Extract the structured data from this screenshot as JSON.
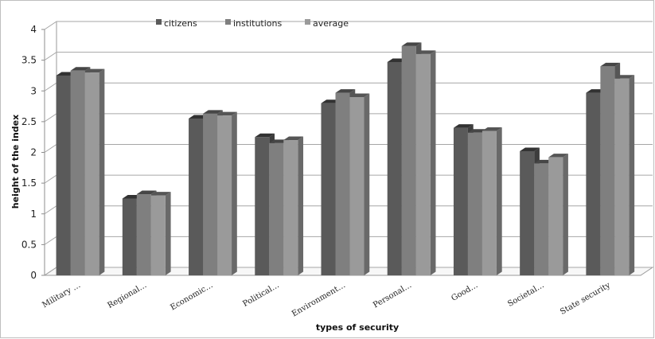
{
  "chart_data": {
    "type": "bar",
    "title": "",
    "xlabel": "types of security",
    "ylabel": "height of the index",
    "ylim": [
      0,
      4
    ],
    "yticks": [
      "0",
      "0.5",
      "1",
      "1.5",
      "2",
      "2.5",
      "3",
      "3.5",
      "4"
    ],
    "grid": true,
    "legend": "top",
    "categories": [
      "Military …",
      "Regional…",
      "Economic…",
      "Political…",
      "Environment…",
      "Personal…",
      "Good…",
      "Societal…",
      "State security"
    ],
    "series": [
      {
        "name": "citizens",
        "color": "#5a5a5a",
        "values": [
          3.25,
          1.25,
          2.55,
          2.25,
          2.8,
          3.47,
          2.4,
          2.02,
          2.97
        ]
      },
      {
        "name": "institutions",
        "color": "#7f7f7f",
        "values": [
          3.33,
          1.32,
          2.63,
          2.15,
          2.97,
          3.73,
          2.32,
          1.82,
          3.4
        ]
      },
      {
        "name": "average",
        "color": "#9a9a9a",
        "values": [
          3.3,
          1.3,
          2.6,
          2.2,
          2.9,
          3.6,
          2.35,
          1.92,
          3.2
        ]
      }
    ]
  }
}
